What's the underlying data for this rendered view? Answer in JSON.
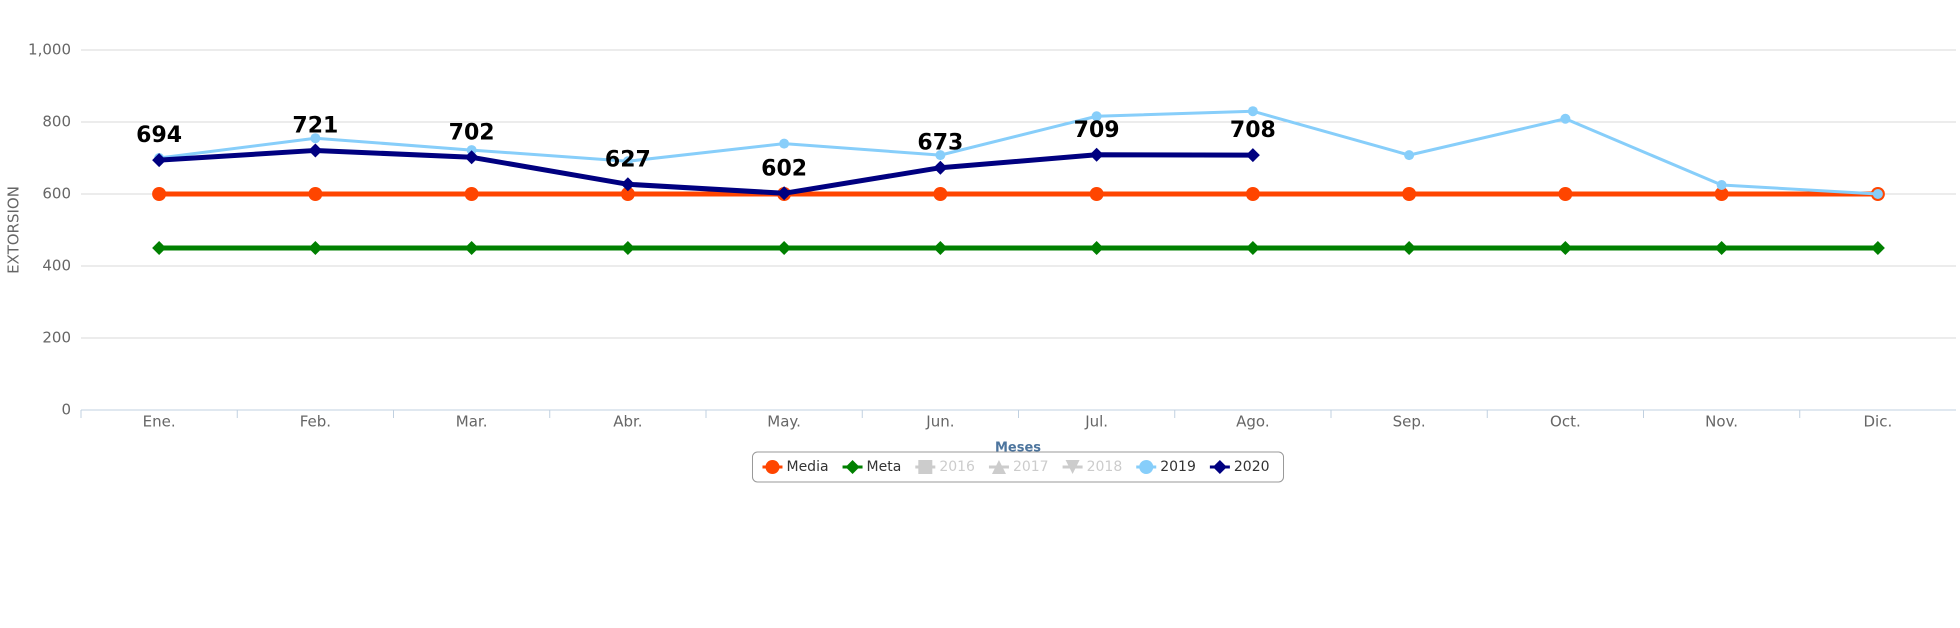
{
  "chart_data": {
    "type": "line",
    "y_axis_label": "EXTORSION",
    "x_axis_label": "Meses",
    "categories": [
      "Ene.",
      "Feb.",
      "Mar.",
      "Abr.",
      "May.",
      "Jun.",
      "Jul.",
      "Ago.",
      "Sep.",
      "Oct.",
      "Nov.",
      "Dic."
    ],
    "ylim": [
      0,
      1000
    ],
    "yticks": [
      0,
      200,
      400,
      600,
      800,
      {
        "value": 1000,
        "label": "1,000"
      }
    ],
    "grid": true,
    "legend": "bottom",
    "series": [
      {
        "name": "Media",
        "color": "#ff4500",
        "marker": "circle",
        "values": [
          600,
          600,
          600,
          600,
          600,
          600,
          600,
          600,
          600,
          600,
          600,
          600
        ]
      },
      {
        "name": "Meta",
        "color": "#008000",
        "marker": "diamond",
        "values": [
          450,
          450,
          450,
          450,
          450,
          450,
          450,
          450,
          450,
          450,
          450,
          450
        ]
      },
      {
        "name": "2016",
        "color": "#cccccc",
        "marker": "square",
        "hidden": true,
        "values": [
          null,
          null,
          null,
          null,
          null,
          null,
          null,
          null,
          null,
          null,
          null,
          null
        ]
      },
      {
        "name": "2017",
        "color": "#cccccc",
        "marker": "triangle",
        "hidden": true,
        "values": [
          null,
          null,
          null,
          null,
          null,
          null,
          null,
          null,
          null,
          null,
          null,
          null
        ]
      },
      {
        "name": "2018",
        "color": "#cccccc",
        "marker": "triangle-down",
        "hidden": true,
        "values": [
          null,
          null,
          null,
          null,
          null,
          null,
          null,
          null,
          null,
          null,
          null,
          null
        ]
      },
      {
        "name": "2019",
        "color": "#87cefa",
        "marker": "circle",
        "values": [
          700,
          755,
          722,
          691,
          740,
          708,
          816,
          830,
          708,
          809,
          625,
          600
        ]
      },
      {
        "name": "2020",
        "color": "#000080",
        "marker": "diamond",
        "data_labels": true,
        "values": [
          694,
          721,
          702,
          627,
          602,
          673,
          709,
          708,
          null,
          null,
          null,
          null
        ]
      }
    ]
  }
}
